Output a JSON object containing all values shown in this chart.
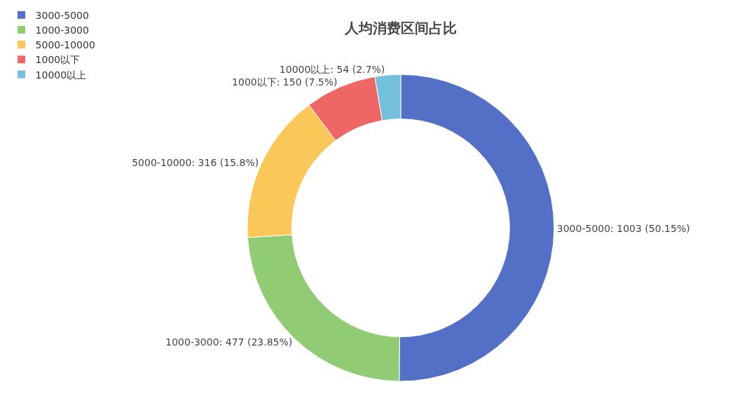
{
  "chart_data": {
    "type": "donut",
    "title": "人均消费区间占比",
    "categories": [
      "3000-5000",
      "1000-3000",
      "5000-10000",
      "1000以下",
      "10000以上"
    ],
    "values": [
      1003,
      477,
      316,
      150,
      54
    ],
    "colors": [
      "#5470c6",
      "#91cc75",
      "#fac858",
      "#ee6666",
      "#73c0de"
    ],
    "value_labels": [
      "3000-5000: 1003 (50.15%)",
      "1000-3000: 477 (23.85%)",
      "5000-10000: 316 (15.8%)",
      "1000以下: 150 (7.5%)",
      "10000以上: 54 (2.7%)"
    ],
    "legend": "top left"
  }
}
